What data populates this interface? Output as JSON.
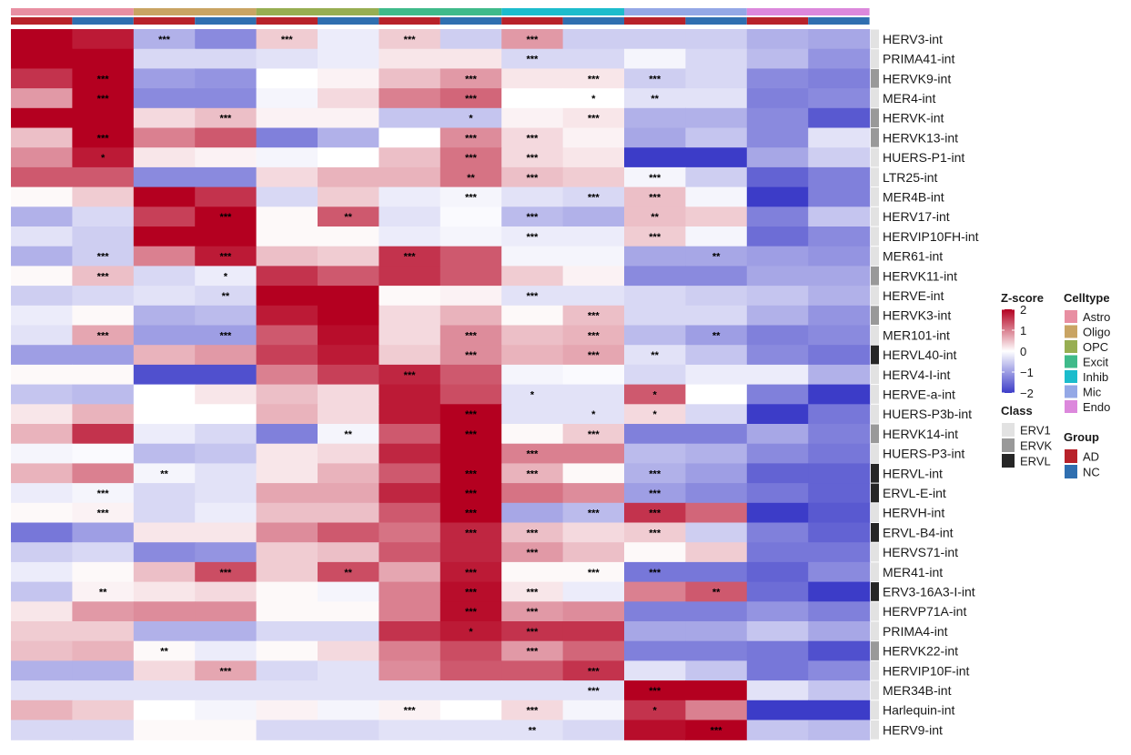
{
  "chart_data": {
    "type": "heatmap",
    "rows": [
      "HERV3-int",
      "PRIMA41-int",
      "HERVK9-int",
      "MER4-int",
      "HERVK-int",
      "HERVK13-int",
      "HUERS-P1-int",
      "LTR25-int",
      "MER4B-int",
      "HERV17-int",
      "HERVIP10FH-int",
      "MER61-int",
      "HERVK11-int",
      "HERVE-int",
      "HERVK3-int",
      "MER101-int",
      "HERVL40-int",
      "HERV4-I-int",
      "HERVE-a-int",
      "HUERS-P3b-int",
      "HERVK14-int",
      "HUERS-P3-int",
      "HERVL-int",
      "ERVL-E-int",
      "HERVH-int",
      "ERVL-B4-int",
      "HERVS71-int",
      "MER41-int",
      "ERV3-16A3-I-int",
      "HERVP71A-int",
      "PRIMA4-int",
      "HERVK22-int",
      "HERVIP10F-int",
      "MER34B-int",
      "Harlequin-int",
      "HERV9-int"
    ],
    "row_class": [
      "ERV1",
      "ERV1",
      "ERVK",
      "ERV1",
      "ERVK",
      "ERVK",
      "ERV1",
      "ERV1",
      "ERV1",
      "ERV1",
      "ERV1",
      "ERV1",
      "ERVK",
      "ERV1",
      "ERVK",
      "ERV1",
      "ERVL",
      "ERV1",
      "ERV1",
      "ERV1",
      "ERVK",
      "ERV1",
      "ERVL",
      "ERVL",
      "ERV1",
      "ERVL",
      "ERV1",
      "ERV1",
      "ERVL",
      "ERV1",
      "ERV1",
      "ERVK",
      "ERV1",
      "ERV1",
      "ERV1",
      "ERV1"
    ],
    "columns": [
      {
        "celltype": "Astro",
        "group": "AD"
      },
      {
        "celltype": "Astro",
        "group": "NC"
      },
      {
        "celltype": "Oligo",
        "group": "AD"
      },
      {
        "celltype": "Oligo",
        "group": "NC"
      },
      {
        "celltype": "OPC",
        "group": "AD"
      },
      {
        "celltype": "OPC",
        "group": "NC"
      },
      {
        "celltype": "Excit",
        "group": "AD"
      },
      {
        "celltype": "Excit",
        "group": "NC"
      },
      {
        "celltype": "Inhib",
        "group": "AD"
      },
      {
        "celltype": "Inhib",
        "group": "NC"
      },
      {
        "celltype": "Mic",
        "group": "AD"
      },
      {
        "celltype": "Mic",
        "group": "NC"
      },
      {
        "celltype": "Endo",
        "group": "AD"
      },
      {
        "celltype": "Endo",
        "group": "NC"
      }
    ],
    "values": [
      [
        2.2,
        1.8,
        -0.8,
        -1.2,
        0.4,
        -0.2,
        0.4,
        -0.5,
        0.8,
        -0.5,
        -0.5,
        -0.5,
        -0.8,
        -0.9
      ],
      [
        2.2,
        2.2,
        -0.4,
        -0.4,
        -0.3,
        -0.2,
        0.2,
        0.2,
        -0.4,
        -0.4,
        -0.1,
        -0.4,
        -0.7,
        -1.1
      ],
      [
        1.6,
        2.2,
        -1.0,
        -1.1,
        0.0,
        0.1,
        0.5,
        0.8,
        0.2,
        0.2,
        -0.5,
        -0.4,
        -1.2,
        -1.3
      ],
      [
        0.8,
        2.2,
        -1.2,
        -1.2,
        -0.1,
        0.3,
        1.0,
        1.2,
        0.0,
        0.0,
        -0.3,
        -0.3,
        -1.3,
        -1.2
      ],
      [
        2.0,
        2.2,
        0.3,
        0.5,
        0.1,
        0.1,
        -0.6,
        -0.6,
        0.1,
        0.2,
        -0.8,
        -0.8,
        -1.2,
        -1.7
      ],
      [
        0.5,
        2.0,
        1.0,
        1.3,
        -1.3,
        -0.8,
        0.0,
        0.9,
        0.3,
        0.1,
        -0.9,
        -0.6,
        -1.2,
        -0.3
      ],
      [
        0.9,
        1.8,
        0.2,
        0.1,
        -0.1,
        0.0,
        0.5,
        1.1,
        0.3,
        0.2,
        -2.0,
        -2.1,
        -0.9,
        -0.5
      ],
      [
        1.3,
        1.3,
        -1.2,
        -1.2,
        0.3,
        0.6,
        0.6,
        1.1,
        0.5,
        0.4,
        -0.1,
        -0.5,
        -1.6,
        -1.3
      ],
      [
        0.05,
        0.4,
        2.0,
        1.6,
        -0.4,
        0.4,
        -0.2,
        -0.1,
        -0.3,
        -0.4,
        0.5,
        -0.1,
        -2.3,
        -1.3
      ],
      [
        -0.8,
        -0.4,
        1.5,
        2.3,
        0.05,
        1.3,
        -0.3,
        -0.05,
        -0.7,
        -0.8,
        0.5,
        0.4,
        -1.3,
        -0.6
      ],
      [
        -0.3,
        -0.5,
        2.3,
        2.3,
        0.05,
        0.05,
        -0.2,
        -0.1,
        -0.2,
        -0.2,
        0.4,
        -0.1,
        -1.5,
        -1.2
      ],
      [
        -0.8,
        -0.5,
        1.0,
        1.8,
        0.5,
        0.4,
        1.6,
        1.3,
        -0.1,
        -0.1,
        -0.9,
        -0.9,
        -1.0,
        -1.1
      ],
      [
        0.05,
        0.5,
        -0.4,
        -0.2,
        1.6,
        1.3,
        1.6,
        1.3,
        0.4,
        0.1,
        -1.2,
        -1.2,
        -0.9,
        -0.9
      ],
      [
        -0.5,
        -0.4,
        -0.3,
        -0.4,
        2.2,
        2.3,
        0.05,
        0.1,
        -0.3,
        -0.3,
        -0.4,
        -0.5,
        -0.6,
        -0.8
      ],
      [
        -0.2,
        0.05,
        -0.8,
        -0.7,
        1.8,
        2.3,
        0.3,
        0.6,
        0.05,
        0.5,
        -0.4,
        -0.4,
        -0.8,
        -1.1
      ],
      [
        -0.3,
        0.7,
        -1.0,
        -1.0,
        1.3,
        1.9,
        0.3,
        0.9,
        0.5,
        0.6,
        -0.7,
        -1.0,
        -1.3,
        -1.2
      ],
      [
        -1.0,
        -1.0,
        0.6,
        0.8,
        1.5,
        1.8,
        0.4,
        0.9,
        0.6,
        0.7,
        -0.3,
        -0.6,
        -1.2,
        -1.4
      ],
      [
        0.05,
        0.05,
        -1.8,
        -1.8,
        1.0,
        1.5,
        1.7,
        1.3,
        -0.1,
        -0.05,
        -0.4,
        -0.2,
        -0.2,
        -0.8
      ],
      [
        -0.6,
        -0.7,
        0.0,
        0.2,
        0.5,
        0.3,
        1.8,
        1.4,
        -0.3,
        -0.3,
        1.3,
        0.0,
        -1.3,
        -2.0
      ],
      [
        0.2,
        0.6,
        0.0,
        0.0,
        0.6,
        0.3,
        1.8,
        2.1,
        -0.3,
        -0.3,
        0.3,
        -0.4,
        -2.0,
        -1.4
      ],
      [
        0.6,
        1.6,
        -0.2,
        -0.4,
        -1.3,
        -0.1,
        1.3,
        2.1,
        0.05,
        0.4,
        -1.3,
        -1.3,
        -0.9,
        -1.3
      ],
      [
        -0.1,
        -0.05,
        -0.7,
        -0.6,
        0.2,
        0.3,
        1.7,
        2.0,
        1.0,
        1.0,
        -0.7,
        -0.8,
        -1.2,
        -1.4
      ],
      [
        0.6,
        1.0,
        -0.1,
        -0.3,
        0.2,
        0.6,
        1.3,
        2.0,
        0.6,
        0.05,
        -0.8,
        -1.0,
        -1.6,
        -1.6
      ],
      [
        -0.2,
        -0.1,
        -0.4,
        -0.3,
        0.7,
        0.7,
        1.7,
        2.0,
        1.1,
        0.9,
        -1.0,
        -1.2,
        -1.4,
        -1.6
      ],
      [
        0.05,
        0.1,
        -0.4,
        -0.2,
        0.5,
        0.5,
        1.3,
        2.0,
        -0.9,
        -0.7,
        1.6,
        1.2,
        -2.0,
        -1.7
      ],
      [
        -1.4,
        -1.0,
        0.2,
        0.2,
        0.9,
        1.3,
        1.1,
        1.7,
        0.5,
        0.3,
        0.4,
        -0.5,
        -1.3,
        -1.6
      ],
      [
        -0.5,
        -0.4,
        -1.2,
        -1.1,
        0.4,
        0.5,
        1.3,
        1.7,
        0.8,
        0.5,
        0.05,
        0.4,
        -1.4,
        -1.4
      ],
      [
        -0.2,
        0.05,
        0.5,
        1.4,
        0.4,
        1.4,
        0.7,
        1.8,
        0.05,
        0.05,
        -1.4,
        -1.4,
        -1.6,
        -1.2
      ],
      [
        -0.6,
        0.1,
        0.2,
        0.3,
        0.05,
        -0.1,
        1.0,
        1.9,
        0.2,
        -0.2,
        1.0,
        1.3,
        -1.5,
        -2.0
      ],
      [
        0.2,
        0.8,
        0.9,
        0.9,
        0.05,
        0.05,
        1.0,
        1.9,
        0.8,
        0.9,
        -1.3,
        -1.3,
        -1.1,
        -1.3
      ],
      [
        0.4,
        0.4,
        -0.8,
        -0.8,
        -0.4,
        -0.4,
        1.6,
        1.8,
        1.6,
        1.6,
        -0.9,
        -0.9,
        -0.6,
        -0.9
      ],
      [
        0.5,
        0.6,
        0.05,
        -0.2,
        0.05,
        0.3,
        1.0,
        1.4,
        0.8,
        1.2,
        -1.3,
        -1.3,
        -1.4,
        -1.8
      ],
      [
        -0.8,
        -0.8,
        0.3,
        0.7,
        -0.4,
        -0.3,
        0.9,
        1.3,
        1.3,
        1.6,
        -0.3,
        -0.6,
        -1.4,
        -1.2
      ],
      [
        -0.3,
        -0.3,
        -0.3,
        -0.3,
        -0.3,
        -0.3,
        -0.3,
        -0.3,
        -0.3,
        -0.3,
        2.3,
        2.3,
        -0.3,
        -0.6
      ],
      [
        0.6,
        0.4,
        0.0,
        -0.1,
        0.1,
        -0.1,
        0.1,
        0.0,
        0.3,
        -0.1,
        1.6,
        1.0,
        -2.1,
        -2.1
      ],
      [
        -0.4,
        -0.4,
        0.05,
        0.05,
        -0.4,
        -0.4,
        -0.3,
        -0.3,
        -0.3,
        -0.4,
        1.9,
        2.3,
        -0.6,
        -0.7
      ]
    ],
    "significance": [
      [
        "",
        "",
        "***",
        "",
        "***",
        "",
        "***",
        "",
        "***",
        "",
        "",
        "",
        "",
        ""
      ],
      [
        "",
        "",
        "",
        "",
        "",
        "",
        "",
        "",
        "***",
        "",
        "",
        "",
        "",
        ""
      ],
      [
        "",
        "***",
        "",
        "",
        "",
        "",
        "",
        "***",
        "",
        "***",
        "***",
        "",
        "",
        ""
      ],
      [
        "",
        "***",
        "",
        "",
        "",
        "",
        "",
        "***",
        "",
        "*",
        "**",
        "",
        "",
        ""
      ],
      [
        "",
        "",
        "",
        "***",
        "",
        "",
        "",
        "*",
        "",
        "***",
        "",
        "",
        "",
        ""
      ],
      [
        "",
        "***",
        "",
        "",
        "",
        "",
        "",
        "***",
        "***",
        "",
        "",
        "",
        "",
        ""
      ],
      [
        "",
        "*",
        "",
        "",
        "",
        "",
        "",
        "***",
        "***",
        "",
        "",
        "",
        "",
        ""
      ],
      [
        "",
        "",
        "",
        "",
        "",
        "",
        "",
        "**",
        "***",
        "",
        "***",
        "",
        "",
        ""
      ],
      [
        "",
        "",
        "",
        "",
        "",
        "",
        "",
        "***",
        "",
        "***",
        "***",
        "",
        "",
        ""
      ],
      [
        "",
        "",
        "",
        "***",
        "",
        "**",
        "",
        "",
        "***",
        "",
        "**",
        "",
        "",
        ""
      ],
      [
        "",
        "",
        "",
        "",
        "",
        "",
        "",
        "",
        "***",
        "",
        "***",
        "",
        "",
        ""
      ],
      [
        "",
        "***",
        "",
        "***",
        "",
        "",
        "***",
        "",
        "",
        "",
        "",
        "**",
        "",
        ""
      ],
      [
        "",
        "***",
        "",
        "*",
        "",
        "",
        "",
        "",
        "",
        "",
        "",
        "",
        "",
        ""
      ],
      [
        "",
        "",
        "",
        "**",
        "",
        "",
        "",
        "",
        "***",
        "",
        "",
        "",
        "",
        ""
      ],
      [
        "",
        "",
        "",
        "",
        "",
        "",
        "",
        "",
        "",
        "***",
        "",
        "",
        "",
        ""
      ],
      [
        "",
        "***",
        "",
        "***",
        "",
        "",
        "",
        "***",
        "",
        "***",
        "",
        "**",
        "",
        ""
      ],
      [
        "",
        "",
        "",
        "",
        "",
        "",
        "",
        "***",
        "",
        "***",
        "**",
        "",
        "",
        ""
      ],
      [
        "",
        "",
        "",
        "",
        "",
        "",
        "***",
        "",
        "",
        "",
        "",
        "",
        "",
        ""
      ],
      [
        "",
        "",
        "",
        "",
        "",
        "",
        "",
        "",
        "*",
        "",
        "*",
        "",
        "",
        ""
      ],
      [
        "",
        "",
        "",
        "",
        "",
        "",
        "",
        "***",
        "",
        "*",
        "*",
        "",
        "",
        ""
      ],
      [
        "",
        "",
        "",
        "",
        "",
        "**",
        "",
        "***",
        "",
        "***",
        "",
        "",
        "",
        ""
      ],
      [
        "",
        "",
        "",
        "",
        "",
        "",
        "",
        "",
        "***",
        "",
        "",
        "",
        "",
        ""
      ],
      [
        "",
        "",
        "**",
        "",
        "",
        "",
        "",
        "***",
        "***",
        "",
        "***",
        "",
        "",
        ""
      ],
      [
        "",
        "***",
        "",
        "",
        "",
        "",
        "",
        "***",
        "",
        "",
        "***",
        "",
        "",
        ""
      ],
      [
        "",
        "***",
        "",
        "",
        "",
        "",
        "",
        "***",
        "",
        "***",
        "***",
        "",
        "",
        ""
      ],
      [
        "",
        "",
        "",
        "",
        "",
        "",
        "",
        "***",
        "***",
        "",
        "***",
        "",
        "",
        ""
      ],
      [
        "",
        "",
        "",
        "",
        "",
        "",
        "",
        "",
        "***",
        "",
        "",
        "",
        "",
        ""
      ],
      [
        "",
        "",
        "",
        "***",
        "",
        "**",
        "",
        "***",
        "",
        "***",
        "***",
        "",
        "",
        ""
      ],
      [
        "",
        "**",
        "",
        "",
        "",
        "",
        "",
        "***",
        "***",
        "",
        "",
        "**",
        "",
        ""
      ],
      [
        "",
        "",
        "",
        "",
        "",
        "",
        "",
        "***",
        "***",
        "",
        "",
        "",
        "",
        ""
      ],
      [
        "",
        "",
        "",
        "",
        "",
        "",
        "",
        "*",
        "***",
        "",
        "",
        "",
        "",
        ""
      ],
      [
        "",
        "",
        "**",
        "",
        "",
        "",
        "",
        "",
        "***",
        "",
        "",
        "",
        "",
        ""
      ],
      [
        "",
        "",
        "",
        "***",
        "",
        "",
        "",
        "",
        "",
        "***",
        "",
        "",
        "",
        ""
      ],
      [
        "",
        "",
        "",
        "",
        "",
        "",
        "",
        "",
        "",
        "***",
        "***",
        "",
        "",
        ""
      ],
      [
        "",
        "",
        "",
        "",
        "",
        "",
        "***",
        "",
        "***",
        "",
        "*",
        "",
        "",
        ""
      ],
      [
        "",
        "",
        "",
        "",
        "",
        "",
        "",
        "",
        "**",
        "",
        "",
        "***",
        "",
        ""
      ]
    ],
    "color_scale": {
      "low": "#3c3cc8",
      "mid": "#ffffff",
      "high": "#b40020",
      "range": [
        -2,
        2
      ]
    },
    "legend_zscore": {
      "title": "Z-score",
      "ticks": [
        2,
        1,
        0,
        -1,
        -2
      ],
      "tick_labels": [
        "2",
        "1",
        "0",
        "−1",
        "−2"
      ]
    },
    "legend_celltype": {
      "title": "Celltype",
      "items": [
        {
          "label": "Astro",
          "color": "#e88fa2"
        },
        {
          "label": "Oligo",
          "color": "#c9a463"
        },
        {
          "label": "OPC",
          "color": "#97ae52"
        },
        {
          "label": "Excit",
          "color": "#3fba8a"
        },
        {
          "label": "Inhib",
          "color": "#1cbccc"
        },
        {
          "label": "Mic",
          "color": "#94a8e6"
        },
        {
          "label": "Endo",
          "color": "#dc88dc"
        }
      ]
    },
    "legend_class": {
      "title": "Class",
      "items": [
        {
          "label": "ERV1",
          "color": "#e2e2e2"
        },
        {
          "label": "ERVK",
          "color": "#999999"
        },
        {
          "label": "ERVL",
          "color": "#262626"
        }
      ]
    },
    "legend_group": {
      "title": "Group",
      "items": [
        {
          "label": "AD",
          "color": "#b8222a"
        },
        {
          "label": "NC",
          "color": "#2f6fb0"
        }
      ]
    }
  }
}
